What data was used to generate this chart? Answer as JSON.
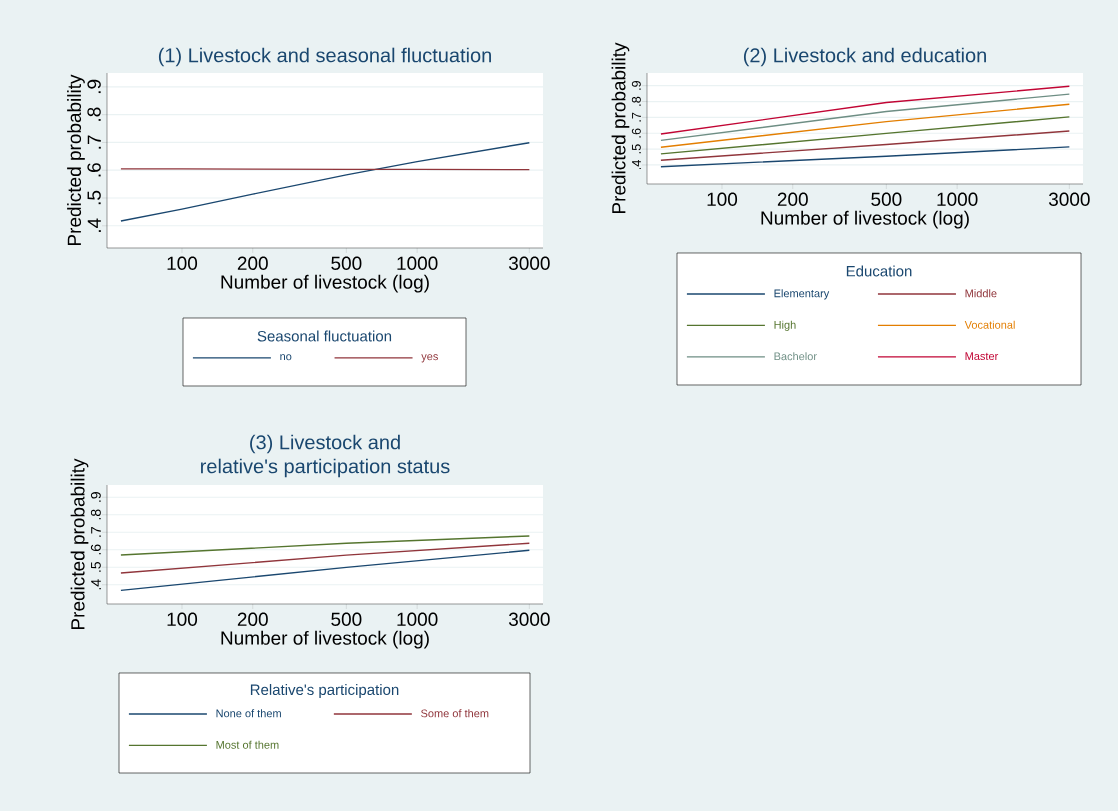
{
  "chart_data": [
    {
      "type": "line",
      "title": "(1)  Livestock and seasonal fluctuation",
      "xlabel": "Number of livestock (log)",
      "ylabel": "Predicted probability",
      "legend_title": "Seasonal fluctuation",
      "log": "x",
      "grid": "y",
      "legend": "bottom",
      "xlim": [
        48,
        3430
      ],
      "ylim": [
        0.32,
        0.95
      ],
      "xticks": [
        100,
        200,
        500,
        1000,
        3000
      ],
      "yticks": [
        {
          "value": 0.4,
          "label": ".4"
        },
        {
          "value": 0.5,
          "label": ".5"
        },
        {
          "value": 0.6,
          "label": ".6"
        },
        {
          "value": 0.7,
          "label": ".7"
        },
        {
          "value": 0.8,
          "label": ".8"
        },
        {
          "value": 0.9,
          "label": ".9"
        }
      ],
      "x": [
        55,
        100,
        200,
        500,
        1000,
        3000
      ],
      "series": [
        {
          "name": "no",
          "color": "#1a476f",
          "values": [
            0.417,
            0.46,
            0.514,
            0.583,
            0.631,
            0.699
          ]
        },
        {
          "name": "yes",
          "color": "#90353b",
          "values": [
            0.605,
            0.605,
            0.604,
            0.603,
            0.603,
            0.602
          ]
        }
      ]
    },
    {
      "type": "line",
      "title": "(2)  Livestock and education",
      "xlabel": "Number of livestock (log)",
      "ylabel": "Predicted probability",
      "legend_title": "Education",
      "log": "x",
      "grid": "y",
      "legend": "bottom",
      "xlim": [
        48,
        3430
      ],
      "ylim": [
        0.28,
        0.98
      ],
      "xticks": [
        100,
        200,
        500,
        1000,
        3000
      ],
      "yticks": [
        {
          "value": 0.4,
          "label": ".4"
        },
        {
          "value": 0.5,
          "label": ".5"
        },
        {
          "value": 0.6,
          "label": ".6"
        },
        {
          "value": 0.7,
          "label": ".7"
        },
        {
          "value": 0.8,
          "label": ".8"
        },
        {
          "value": 0.9,
          "label": ".9"
        }
      ],
      "x": [
        55,
        500,
        3000
      ],
      "series": [
        {
          "name": "Elementary",
          "color": "#1a476f",
          "values": [
            0.389,
            0.455,
            0.514
          ]
        },
        {
          "name": "Middle",
          "color": "#90353b",
          "values": [
            0.43,
            0.529,
            0.614
          ]
        },
        {
          "name": "High",
          "color": "#55752f",
          "values": [
            0.47,
            0.599,
            0.703
          ]
        },
        {
          "name": "Vocational",
          "color": "#e37e00",
          "values": [
            0.512,
            0.673,
            0.783
          ]
        },
        {
          "name": "Bachelor",
          "color": "#6e8e84",
          "values": [
            0.555,
            0.737,
            0.847
          ]
        },
        {
          "name": "Master",
          "color": "#c10534",
          "values": [
            0.595,
            0.794,
            0.896
          ]
        }
      ]
    },
    {
      "type": "line",
      "title": "(3) Livestock and",
      "subtitle": "relative's participation status",
      "xlabel": "Number of livestock (log)",
      "ylabel": "Predicted probability",
      "legend_title": "Relative's participation",
      "log": "x",
      "grid": "y",
      "legend": "bottom",
      "xlim": [
        48,
        3430
      ],
      "ylim": [
        0.29,
        0.97
      ],
      "xticks": [
        100,
        200,
        500,
        1000,
        3000
      ],
      "yticks": [
        {
          "value": 0.4,
          "label": ".4"
        },
        {
          "value": 0.5,
          "label": ".5"
        },
        {
          "value": 0.6,
          "label": ".6"
        },
        {
          "value": 0.7,
          "label": ".7"
        },
        {
          "value": 0.8,
          "label": ".8"
        },
        {
          "value": 0.9,
          "label": ".9"
        }
      ],
      "x": [
        55,
        500,
        3000
      ],
      "series": [
        {
          "name": "None of them",
          "color": "#1a476f",
          "values": [
            0.368,
            0.499,
            0.597
          ]
        },
        {
          "name": "Some of them",
          "color": "#90353b",
          "values": [
            0.467,
            0.569,
            0.637
          ]
        },
        {
          "name": "Most of them",
          "color": "#55752f",
          "values": [
            0.57,
            0.637,
            0.679
          ]
        }
      ]
    }
  ]
}
